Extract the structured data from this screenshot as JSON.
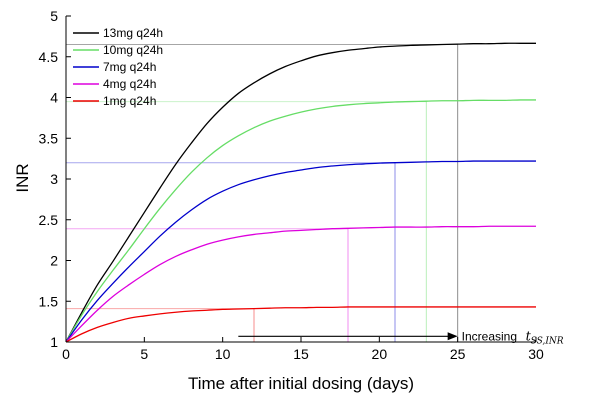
{
  "chart_data": {
    "type": "line",
    "xlabel": "Time after initial dosing (days)",
    "ylabel": "INR",
    "xlim": [
      0,
      30
    ],
    "ylim": [
      1,
      5
    ],
    "xticks": [
      "0",
      "5",
      "10",
      "15",
      "20",
      "25",
      "30"
    ],
    "yticks": [
      "1",
      "1.5",
      "2",
      "2.5",
      "3",
      "3.5",
      "4",
      "4.5",
      "5"
    ],
    "legend_position": "top-left",
    "grid": false,
    "x": [
      0,
      1,
      2,
      3,
      4,
      5,
      6,
      7,
      8,
      9,
      10,
      11,
      12,
      13,
      14,
      15,
      16,
      17,
      18,
      19,
      20,
      21,
      22,
      23,
      24,
      25,
      26,
      27,
      28,
      29,
      30
    ],
    "series": [
      {
        "name": "13mg q24h",
        "color": "#000000",
        "values": [
          1.0,
          1.36,
          1.7,
          1.99,
          2.29,
          2.59,
          2.89,
          3.18,
          3.44,
          3.68,
          3.88,
          4.05,
          4.18,
          4.29,
          4.38,
          4.45,
          4.51,
          4.55,
          4.58,
          4.6,
          4.62,
          4.63,
          4.64,
          4.645,
          4.65,
          4.655,
          4.66,
          4.66,
          4.665,
          4.665,
          4.665
        ],
        "steady_state": 4.65,
        "t_ss": 25
      },
      {
        "name": "10mg q24h",
        "color": "#66dd66",
        "values": [
          1.0,
          1.33,
          1.62,
          1.88,
          2.13,
          2.39,
          2.64,
          2.87,
          3.08,
          3.26,
          3.41,
          3.53,
          3.63,
          3.71,
          3.77,
          3.82,
          3.86,
          3.89,
          3.91,
          3.925,
          3.935,
          3.945,
          3.95,
          3.955,
          3.96,
          3.96,
          3.965,
          3.965,
          3.965,
          3.97,
          3.97
        ],
        "steady_state": 3.95,
        "t_ss": 23
      },
      {
        "name": "7mg q24h",
        "color": "#0000cc",
        "values": [
          1.0,
          1.27,
          1.51,
          1.72,
          1.92,
          2.11,
          2.3,
          2.47,
          2.62,
          2.75,
          2.85,
          2.93,
          2.99,
          3.04,
          3.08,
          3.11,
          3.14,
          3.16,
          3.175,
          3.185,
          3.195,
          3.2,
          3.205,
          3.21,
          3.215,
          3.215,
          3.22,
          3.22,
          3.22,
          3.22,
          3.22
        ],
        "steady_state": 3.2,
        "t_ss": 21
      },
      {
        "name": "4mg q24h",
        "color": "#dd00dd",
        "values": [
          1.0,
          1.2,
          1.39,
          1.56,
          1.7,
          1.83,
          1.95,
          2.05,
          2.13,
          2.2,
          2.25,
          2.29,
          2.32,
          2.34,
          2.36,
          2.37,
          2.38,
          2.39,
          2.395,
          2.4,
          2.405,
          2.41,
          2.41,
          2.41,
          2.415,
          2.415,
          2.415,
          2.42,
          2.42,
          2.42,
          2.42
        ],
        "steady_state": 2.39,
        "t_ss": 18
      },
      {
        "name": "1mg q24h",
        "color": "#ee0000",
        "values": [
          1.0,
          1.1,
          1.18,
          1.24,
          1.29,
          1.32,
          1.345,
          1.365,
          1.38,
          1.39,
          1.4,
          1.405,
          1.41,
          1.415,
          1.42,
          1.42,
          1.425,
          1.425,
          1.43,
          1.43,
          1.43,
          1.43,
          1.43,
          1.43,
          1.43,
          1.43,
          1.43,
          1.43,
          1.43,
          1.43,
          1.43
        ],
        "steady_state": 1.41,
        "t_ss": 12
      }
    ],
    "annotation": {
      "text": "Increasing",
      "symbol": "t",
      "subscript": "SS,INR",
      "arrow_x_from": 11,
      "arrow_x_to": 25,
      "arrow_y": 1.07
    }
  }
}
